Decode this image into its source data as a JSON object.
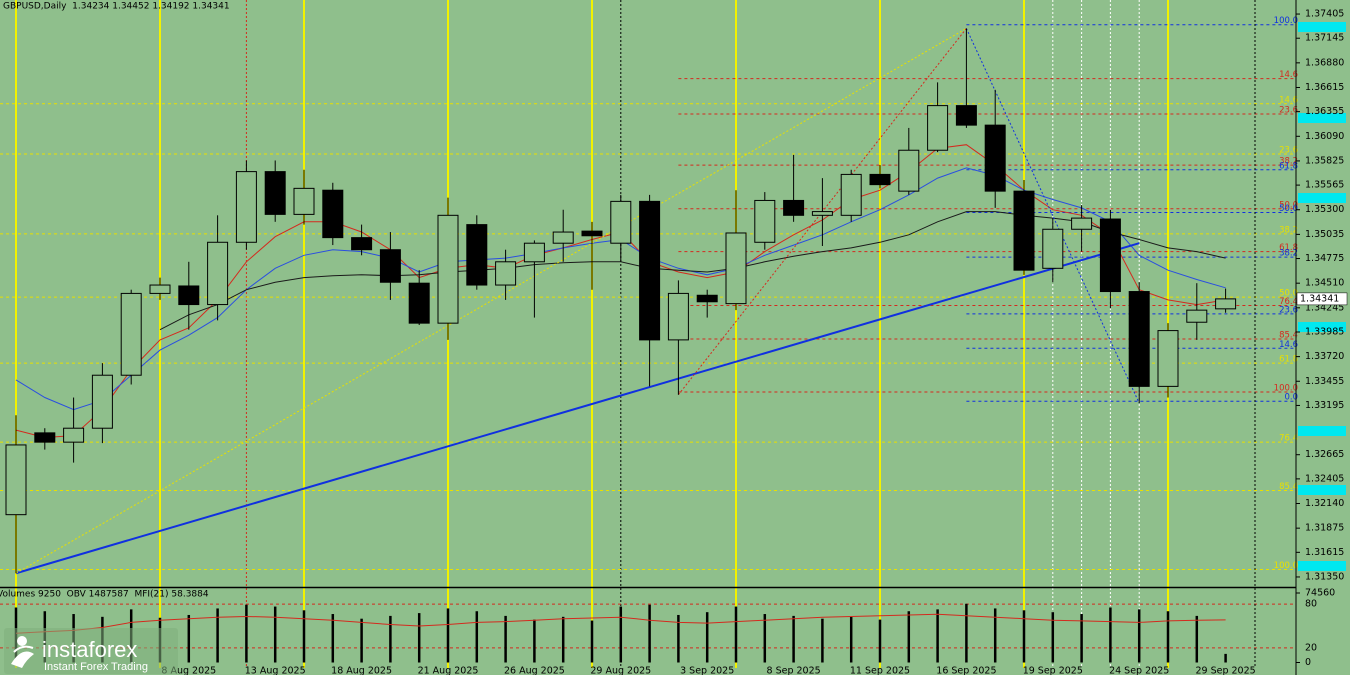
{
  "chart_data": {
    "type": "candlestick",
    "title": "GBPUSD,Daily  1.34234 1.34452 1.34192 1.34341",
    "categories": [
      null,
      null,
      null,
      null,
      null,
      null,
      "8 Aug 2025",
      null,
      null,
      "13 Aug 2025",
      null,
      null,
      "18 Aug 2025",
      null,
      null,
      "21 Aug 2025",
      null,
      null,
      "26 Aug 2025",
      null,
      null,
      "29 Aug 2025",
      null,
      null,
      "3 Sep 2025",
      null,
      null,
      "8 Sep 2025",
      null,
      null,
      "11 Sep 2025",
      null,
      null,
      "16 Sep 2025",
      null,
      null,
      "19 Sep 2025",
      null,
      null,
      "24 Sep 2025",
      null,
      null,
      "29 Sep 2025"
    ],
    "open": [
      1.3202,
      1.329,
      1.328,
      1.3295,
      1.3352,
      1.344,
      1.3448,
      1.3428,
      1.3495,
      1.3571,
      1.3525,
      1.3551,
      1.35,
      1.3487,
      1.3451,
      1.3408,
      1.3514,
      1.3449,
      1.3474,
      1.3494,
      1.3507,
      1.3494,
      1.3539,
      1.339,
      1.3438,
      1.3429,
      1.3495,
      1.354,
      1.3524,
      1.3524,
      1.3568,
      1.355,
      1.3594,
      1.3642,
      1.3621,
      1.355,
      1.3467,
      1.3509,
      1.352,
      1.3442,
      1.334,
      1.3409,
      1.34234
    ],
    "high": [
      1.3309,
      1.3295,
      1.3328,
      1.3365,
      1.3444,
      1.3457,
      1.3474,
      1.3524,
      1.3583,
      1.3583,
      1.3573,
      1.3559,
      1.3514,
      1.3506,
      1.3465,
      1.3543,
      1.3524,
      1.3487,
      1.3497,
      1.353,
      1.3517,
      1.3546,
      1.3546,
      1.3454,
      1.3444,
      1.3551,
      1.3549,
      1.3589,
      1.3564,
      1.3573,
      1.3578,
      1.3618,
      1.3667,
      1.3725,
      1.3659,
      1.3562,
      1.3521,
      1.3535,
      1.353,
      1.3452,
      1.3408,
      1.3451,
      1.34452
    ],
    "low": [
      1.3139,
      1.3272,
      1.3258,
      1.3279,
      1.3342,
      1.3433,
      1.3401,
      1.3411,
      1.3487,
      1.3517,
      1.3514,
      1.3492,
      1.3481,
      1.3433,
      1.3406,
      1.339,
      1.3444,
      1.3433,
      1.3414,
      1.3474,
      1.3444,
      1.3474,
      1.334,
      1.3331,
      1.3414,
      1.3422,
      1.3487,
      1.3517,
      1.3491,
      1.3517,
      1.3553,
      1.3546,
      1.3592,
      1.3618,
      1.3532,
      1.346,
      1.3452,
      1.3485,
      1.3424,
      1.3322,
      1.3328,
      1.339,
      1.34192
    ],
    "close": [
      1.3277,
      1.328,
      1.3295,
      1.3352,
      1.344,
      1.3449,
      1.3428,
      1.3495,
      1.3571,
      1.3525,
      1.3553,
      1.35,
      1.3487,
      1.3452,
      1.3408,
      1.3524,
      1.3449,
      1.3474,
      1.3494,
      1.3506,
      1.3502,
      1.3539,
      1.339,
      1.344,
      1.3431,
      1.3505,
      1.354,
      1.3524,
      1.3528,
      1.3568,
      1.3557,
      1.3594,
      1.3642,
      1.3621,
      1.355,
      1.3465,
      1.3509,
      1.3521,
      1.3442,
      1.334,
      1.34,
      1.3422,
      1.34341
    ],
    "up_color": "#8fbf8c",
    "down_color": "#000000",
    "ylim": [
      1.31242,
      1.37556
    ],
    "yticks": [
      1.37405,
      1.37145,
      {
        "value": 1.3688,
        "label": "1.36880"
      },
      1.36615,
      1.36355,
      {
        "value": 1.3609,
        "label": "1.36090"
      },
      1.35825,
      1.35565,
      {
        "value": 1.353,
        "label": "1.35300"
      },
      1.35035,
      1.34775,
      {
        "value": 1.3451,
        "label": "1.34510"
      },
      1.34245,
      1.33985,
      {
        "value": 1.3372,
        "label": "1.33720"
      },
      1.33455,
      1.33195,
      1.32665,
      1.32405,
      {
        "value": 1.3214,
        "label": "1.32140"
      },
      1.31875,
      1.31615,
      {
        "value": 1.3135,
        "label": "1.31350"
      }
    ],
    "last_price": 1.34341,
    "lines": [
      {
        "color": "#d42a1e",
        "values": [
          1.3293,
          1.3285,
          1.3287,
          1.3315,
          1.3358,
          1.339,
          1.3403,
          1.3433,
          1.3474,
          1.3501,
          1.3517,
          1.3517,
          1.3506,
          1.3487,
          1.3457,
          1.3467,
          1.3471,
          1.3467,
          1.3481,
          1.3489,
          1.3498,
          1.3506,
          1.3474,
          1.3463,
          1.3457,
          1.3463,
          1.3485,
          1.3503,
          1.3519,
          1.3541,
          1.3551,
          1.3571,
          1.3596,
          1.36,
          1.3578,
          1.3551,
          1.353,
          1.3524,
          1.3503,
          1.3444,
          1.3433,
          1.3428,
          1.3433
        ]
      },
      {
        "color": "#2a4ee0",
        "values": [
          1.3347,
          1.3328,
          1.3315,
          1.3325,
          1.3352,
          1.3379,
          1.3395,
          1.3414,
          1.3444,
          1.3467,
          1.3481,
          1.3487,
          1.3485,
          1.3478,
          1.3463,
          1.3474,
          1.3476,
          1.3478,
          1.3483,
          1.3489,
          1.3494,
          1.3498,
          1.3478,
          1.3467,
          1.346,
          1.3467,
          1.3481,
          1.3492,
          1.3503,
          1.3517,
          1.353,
          1.3546,
          1.3564,
          1.3575,
          1.3567,
          1.3551,
          1.3541,
          1.3532,
          1.3517,
          1.3481,
          1.3465,
          1.3455,
          1.3446
        ]
      },
      {
        "color": "#1a1a1a",
        "values": [
          null,
          null,
          null,
          null,
          null,
          1.3401,
          1.3417,
          1.3428,
          1.3444,
          1.3452,
          1.3457,
          1.3459,
          1.346,
          1.3459,
          1.346,
          1.3463,
          1.3465,
          1.3467,
          1.3471,
          1.3473,
          1.3474,
          1.3474,
          1.3467,
          1.3465,
          1.3463,
          1.3467,
          1.3474,
          1.348,
          1.3485,
          1.3489,
          1.3495,
          1.3503,
          1.3517,
          1.3528,
          1.3528,
          1.3524,
          1.3521,
          1.3517,
          1.3506,
          1.3498,
          1.3489,
          1.3485,
          1.3478
        ]
      }
    ],
    "trendlines": [
      {
        "color": "#1030e0",
        "style": "solid",
        "x": [
          0,
          39
        ],
        "values": [
          1.3139,
          1.3494
        ]
      },
      {
        "color": "#e8e000",
        "style": "dotted",
        "x": [
          0,
          33
        ],
        "values": [
          1.3139,
          1.3725
        ]
      },
      {
        "color": "#d42a1e",
        "style": "dotted",
        "x": [
          23,
          33
        ],
        "values": [
          1.3331,
          1.3725
        ]
      },
      {
        "color": "#1030e0",
        "style": "dotted",
        "x": [
          33,
          39
        ],
        "values": [
          1.3725,
          1.3322
        ]
      }
    ],
    "fib_levels": [
      {
        "label": "100.0",
        "value": 1.3729,
        "color": "#1030e0"
      },
      {
        "label": "14.6",
        "value": 1.3671,
        "color": "#d42a1e"
      },
      {
        "label": "14.6",
        "value": 1.3644,
        "color": "#e8e000"
      },
      {
        "label": "23.6",
        "value": 1.3633,
        "color": "#d42a1e"
      },
      {
        "label": "23.6",
        "value": 1.359,
        "color": "#e8e000"
      },
      {
        "label": "38.2",
        "value": 1.3578,
        "color": "#d42a1e"
      },
      {
        "label": "61.8",
        "value": 1.3573,
        "color": "#1030e0"
      },
      {
        "label": "50.0",
        "value": 1.3531,
        "color": "#d42a1e"
      },
      {
        "label": "50.0",
        "value": 1.3527,
        "color": "#1030e0"
      },
      {
        "label": "38.2",
        "value": 1.3504,
        "color": "#e8e000"
      },
      {
        "label": "61.8",
        "value": 1.3485,
        "color": "#d42a1e"
      },
      {
        "label": "38.2",
        "value": 1.3479,
        "color": "#1030e0"
      },
      {
        "label": "50.0",
        "value": 1.3436,
        "color": "#e8e000"
      },
      {
        "label": "76.4",
        "value": 1.3427,
        "color": "#d42a1e"
      },
      {
        "label": "23.6",
        "value": 1.3418,
        "color": "#1030e0"
      },
      {
        "label": "85.4",
        "value": 1.3391,
        "color": "#d42a1e"
      },
      {
        "label": "14.6",
        "value": 1.3381,
        "color": "#1030e0"
      },
      {
        "label": "61.8",
        "value": 1.3365,
        "color": "#e8e000"
      },
      {
        "label": "100.0",
        "value": 1.3334,
        "color": "#d42a1e"
      },
      {
        "label": "0.0",
        "value": 1.3324,
        "color": "#1030e0"
      },
      {
        "label": "76.4",
        "value": 1.328,
        "color": "#e8e000"
      },
      {
        "label": "85.4",
        "value": 1.3228,
        "color": "#e8e000"
      },
      {
        "label": "100.0",
        "value": 1.3143,
        "color": "#e8e000"
      }
    ],
    "lower_panel": {
      "title": "Volumes 9250  OBV 1487587  MFI(21) 58.3884",
      "volume": {
        "color": "#000000",
        "values": [
          59000,
          55000,
          52000,
          49000,
          57000,
          48000,
          51000,
          58000,
          62000,
          60000,
          56000,
          52000,
          47000,
          50000,
          53000,
          58000,
          55000,
          50000,
          46000,
          49000,
          45000,
          60000,
          62000,
          51000,
          54000,
          60000,
          52000,
          50000,
          47000,
          49000,
          46000,
          55000,
          57000,
          63000,
          58000,
          56000,
          54000,
          52000,
          59000,
          57000,
          55000,
          50000,
          9250
        ]
      },
      "volume_lim": [
        0,
        74560
      ],
      "volume_ticks": [
        0,
        74560
      ],
      "mfi": {
        "color": "#d42a1e",
        "values": [
          40,
          42,
          44,
          48,
          55,
          58,
          60,
          62,
          63,
          62,
          60,
          58,
          55,
          52,
          50,
          52,
          55,
          56,
          58,
          60,
          61,
          62,
          58,
          55,
          54,
          56,
          58,
          60,
          62,
          63,
          64,
          65,
          66,
          64,
          62,
          60,
          58,
          57,
          56,
          55,
          57,
          58,
          58.3884
        ]
      },
      "mfi_lim": [
        0,
        100
      ],
      "mfi_ticks": [
        20,
        80
      ]
    },
    "watermark": {
      "name": "instaforex",
      "tagline": "Instant Forex Trading"
    }
  }
}
